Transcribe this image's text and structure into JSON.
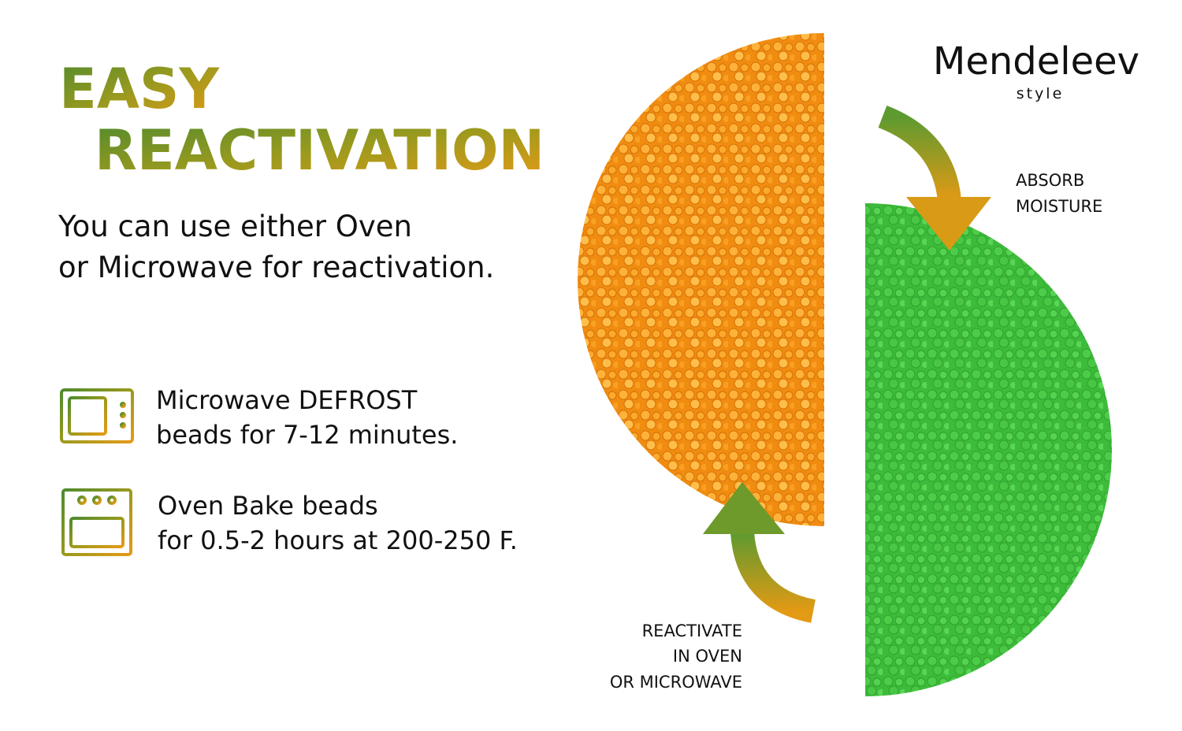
{
  "heading": {
    "line1": "EASY",
    "line2": "REACTIVATION"
  },
  "intro": [
    "You can use either Oven",
    "or Microwave for reactivation."
  ],
  "steps": [
    {
      "lines": [
        "Microwave DEFROST",
        "beads for 7-12 minutes."
      ]
    },
    {
      "lines": [
        "Oven Bake beads",
        "for 0.5-2 hours at 200-250 F."
      ]
    }
  ],
  "brand": {
    "name": "Mendeleev",
    "tagline": "style"
  },
  "labels": {
    "absorb": [
      "ABSORB",
      "MOISTURE"
    ],
    "reactivate": [
      "REACTIVATE",
      "IN OVEN",
      "OR MICROWAVE"
    ]
  }
}
